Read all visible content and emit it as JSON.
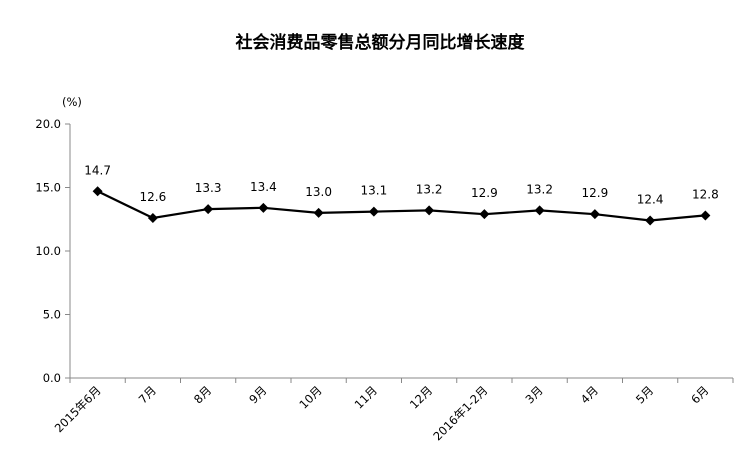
{
  "chart_data": {
    "type": "line",
    "title": "社会消费品零售总额分月同比增长速度",
    "unit": "(%)",
    "categories": [
      "2015年6月",
      "7月",
      "8月",
      "9月",
      "10月",
      "11月",
      "12月",
      "2016年1-2月",
      "3月",
      "4月",
      "5月",
      "6月"
    ],
    "values": [
      14.7,
      12.6,
      13.3,
      13.4,
      13.0,
      13.1,
      13.2,
      12.9,
      13.2,
      12.9,
      12.4,
      12.8
    ],
    "data_labels": [
      "14.7",
      "12.6",
      "13.3",
      "13.4",
      "13.0",
      "13.1",
      "13.2",
      "12.9",
      "13.2",
      "12.9",
      "12.4",
      "12.8"
    ],
    "y_ticks": [
      "0.0",
      "5.0",
      "10.0",
      "15.0",
      "20.0"
    ],
    "ylim": [
      0,
      20
    ],
    "grid": false,
    "legend": "none",
    "colors": {
      "line": "#000000",
      "axis": "#888888"
    }
  }
}
